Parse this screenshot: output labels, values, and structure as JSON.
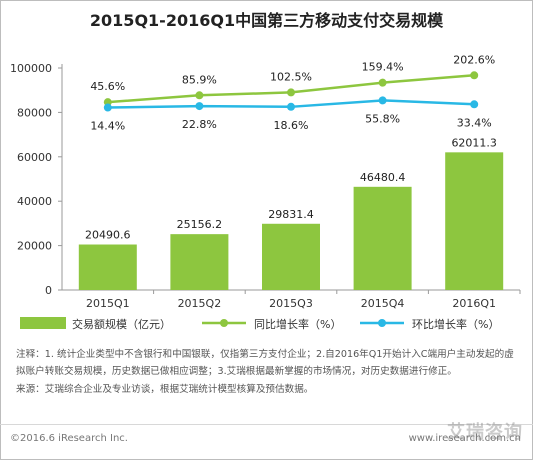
{
  "chart_data": {
    "type": "bar+line",
    "title": "2015Q1-2016Q1中国第三方移动支付交易规模",
    "categories": [
      "2015Q1",
      "2015Q2",
      "2015Q3",
      "2015Q4",
      "2016Q1"
    ],
    "bar_series": {
      "name": "交易额规模（亿元）",
      "values": [
        20490.6,
        25156.2,
        29831.4,
        46480.4,
        62011.3
      ],
      "labels": [
        "20490.6",
        "25156.2",
        "29831.4",
        "46480.4",
        "62011.3"
      ],
      "color": "#8dc63f"
    },
    "line_series": [
      {
        "name": "同比增长率（%）",
        "values": [
          45.6,
          85.9,
          102.5,
          159.4,
          202.6
        ],
        "labels": [
          "45.6%",
          "85.9%",
          "102.5%",
          "159.4%",
          "202.6%"
        ],
        "color": "#8dc63f"
      },
      {
        "name": "环比增长率（%）",
        "values": [
          14.4,
          22.8,
          18.6,
          55.8,
          33.4
        ],
        "labels": [
          "14.4%",
          "22.8%",
          "18.6%",
          "55.8%",
          "33.4%"
        ],
        "color": "#29b8e5"
      }
    ],
    "y_ticks": [
      "0",
      "20000",
      "40000",
      "60000",
      "80000",
      "100000"
    ],
    "ylim": [
      0,
      100000
    ],
    "legend_position": "bottom",
    "grid": false
  },
  "notes": {
    "note": "注释：1. 统计企业类型中不含银行和中国银联，仅指第三方支付企业；2.自2016年Q1开始计入C端用户主动发起的虚拟账户转账交易规模，历史数据已做相应调整；3.艾瑞根据最新掌握的市场情况，对历史数据进行修正。",
    "source": "来源：艾瑞综合企业及专业访谈，根据艾瑞统计模型核算及预估数据。"
  },
  "footer": {
    "copyright": "©2016.6 iResearch Inc.",
    "website": "www.iresearch.com.cn",
    "watermark": "艾瑞咨询"
  }
}
